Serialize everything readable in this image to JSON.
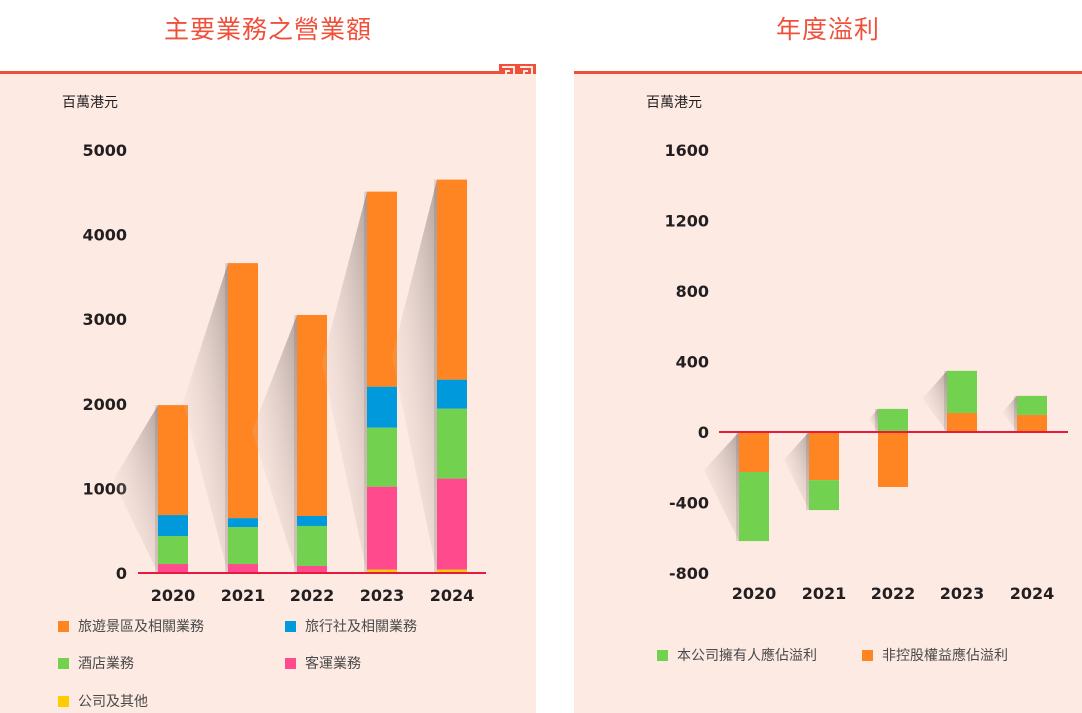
{
  "chart_data": [
    {
      "type": "bar",
      "stacked": true,
      "title": "主要業務之營業額",
      "ylabel": "百萬港元",
      "xlabel": "",
      "ylim": [
        0,
        5000
      ],
      "yticks": [
        0,
        1000,
        2000,
        3000,
        4000,
        5000
      ],
      "categories": [
        "2020",
        "2021",
        "2022",
        "2023",
        "2024"
      ],
      "series": [
        {
          "name": "公司及其他",
          "color": "#ffcc00",
          "values": [
            0,
            0,
            0,
            40,
            40
          ]
        },
        {
          "name": "客運業務",
          "color": "#ff4a8d",
          "values": [
            106,
            106,
            83,
            981,
            1076
          ]
        },
        {
          "name": "酒店業務",
          "color": "#72d14f",
          "values": [
            331,
            437,
            473,
            697,
            827
          ]
        },
        {
          "name": "旅行社及相關業務",
          "color": "#0099dc",
          "values": [
            248,
            106,
            118,
            485,
            343
          ]
        },
        {
          "name": "旅遊景區及相關業務",
          "color": "#ff8522",
          "values": [
            1300,
            3014,
            2376,
            2305,
            2364
          ]
        }
      ],
      "legend": [
        {
          "name": "旅遊景區及相關業務",
          "color": "#ff8522"
        },
        {
          "name": "旅行社及相關業務",
          "color": "#0099dc"
        },
        {
          "name": "酒店業務",
          "color": "#72d14f"
        },
        {
          "name": "客運業務",
          "color": "#ff4a8d"
        },
        {
          "name": "公司及其他",
          "color": "#ffcc00"
        }
      ],
      "legend_position": "bottom",
      "grid": false
    },
    {
      "type": "bar",
      "stacked": true,
      "title": "年度溢利",
      "ylabel": "百萬港元",
      "xlabel": "",
      "ylim": [
        -800,
        1600
      ],
      "yticks": [
        -800,
        -400,
        0,
        400,
        800,
        1200,
        1600
      ],
      "categories": [
        "2020",
        "2021",
        "2022",
        "2023",
        "2024"
      ],
      "series": [
        {
          "name": "非控股權益應佔溢利",
          "color": "#ff8522",
          "values": [
            -227,
            -273,
            -312,
            108,
            97
          ]
        },
        {
          "name": "本公司擁有人應佔溢利",
          "color": "#72d14f",
          "values": [
            -392,
            -170,
            131,
            239,
            108
          ]
        }
      ],
      "legend": [
        {
          "name": "本公司擁有人應佔溢利",
          "color": "#72d14f"
        },
        {
          "name": "非控股權益應佔溢利",
          "color": "#ff8522"
        }
      ],
      "legend_position": "bottom",
      "grid": false
    }
  ],
  "axis_line_color": "#e8193c"
}
